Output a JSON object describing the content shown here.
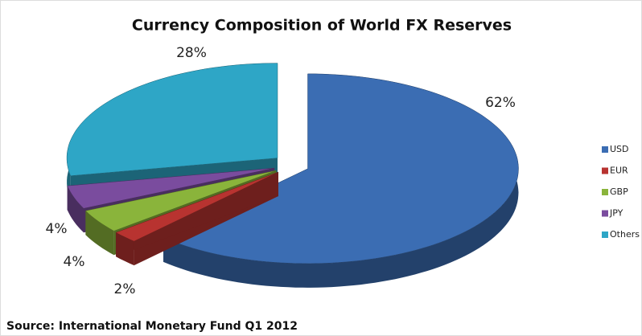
{
  "chart_data": {
    "type": "pie3d",
    "title": "Currency Composition of World FX Reserves",
    "annotation": "Source: International Monetary Fund Q1 2012",
    "categories": [
      "USD",
      "EUR",
      "GBP",
      "JPY",
      "Others"
    ],
    "values": [
      62,
      2,
      4,
      4,
      28
    ],
    "value_labels": [
      "62%",
      "2%",
      "4%",
      "4%",
      "28%"
    ],
    "colors": [
      "#3b6db3",
      "#b83330",
      "#8ab43b",
      "#7a4c9e",
      "#2ea6c6"
    ],
    "legend": "right"
  }
}
